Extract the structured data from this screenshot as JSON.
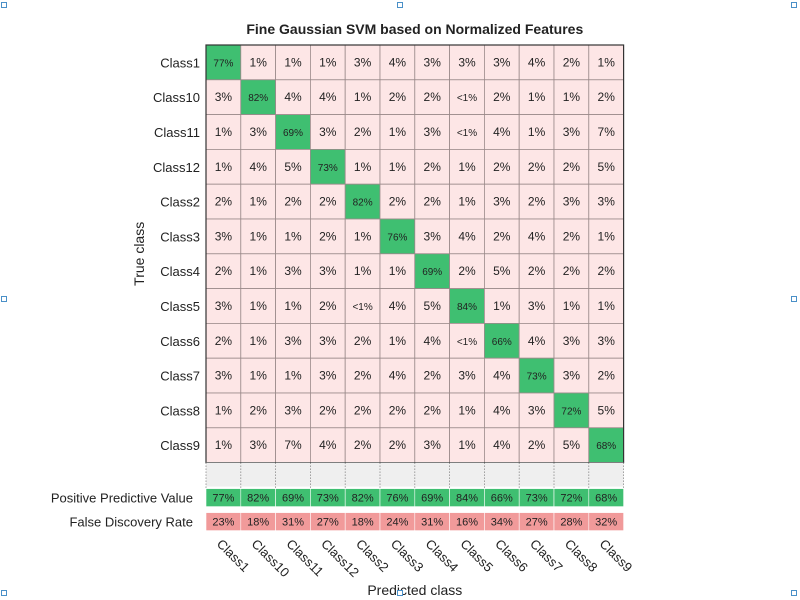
{
  "chart_data": {
    "type": "heatmap",
    "title": "Fine Gaussian SVM based on Normalized Features",
    "xlabel": "Predicted class",
    "ylabel": "True class",
    "classes": [
      "Class1",
      "Class10",
      "Class11",
      "Class12",
      "Class2",
      "Class3",
      "Class4",
      "Class5",
      "Class6",
      "Class7",
      "Class8",
      "Class9"
    ],
    "matrix": [
      [
        "77%",
        "1%",
        "1%",
        "1%",
        "3%",
        "4%",
        "3%",
        "3%",
        "3%",
        "4%",
        "2%",
        "1%"
      ],
      [
        "3%",
        "82%",
        "4%",
        "4%",
        "1%",
        "2%",
        "2%",
        "<1%",
        "2%",
        "1%",
        "1%",
        "2%"
      ],
      [
        "1%",
        "3%",
        "69%",
        "3%",
        "2%",
        "1%",
        "3%",
        "<1%",
        "4%",
        "1%",
        "3%",
        "7%"
      ],
      [
        "1%",
        "4%",
        "5%",
        "73%",
        "1%",
        "1%",
        "2%",
        "1%",
        "2%",
        "2%",
        "2%",
        "5%"
      ],
      [
        "2%",
        "1%",
        "2%",
        "2%",
        "82%",
        "2%",
        "2%",
        "1%",
        "3%",
        "2%",
        "3%",
        "3%"
      ],
      [
        "3%",
        "1%",
        "1%",
        "2%",
        "1%",
        "76%",
        "3%",
        "4%",
        "2%",
        "4%",
        "2%",
        "1%"
      ],
      [
        "2%",
        "1%",
        "3%",
        "3%",
        "1%",
        "1%",
        "69%",
        "2%",
        "5%",
        "2%",
        "2%",
        "2%"
      ],
      [
        "3%",
        "1%",
        "1%",
        "2%",
        "<1%",
        "4%",
        "5%",
        "84%",
        "1%",
        "3%",
        "1%",
        "1%"
      ],
      [
        "2%",
        "1%",
        "3%",
        "3%",
        "2%",
        "1%",
        "4%",
        "<1%",
        "66%",
        "4%",
        "3%",
        "3%"
      ],
      [
        "3%",
        "1%",
        "1%",
        "3%",
        "2%",
        "4%",
        "2%",
        "3%",
        "4%",
        "73%",
        "3%",
        "2%"
      ],
      [
        "1%",
        "2%",
        "3%",
        "2%",
        "2%",
        "2%",
        "2%",
        "1%",
        "4%",
        "3%",
        "72%",
        "5%"
      ],
      [
        "1%",
        "3%",
        "7%",
        "4%",
        "2%",
        "2%",
        "3%",
        "1%",
        "4%",
        "2%",
        "5%",
        "68%"
      ]
    ],
    "summary_rows": [
      {
        "label": "Positive Predictive Value",
        "values": [
          "77%",
          "82%",
          "69%",
          "73%",
          "82%",
          "76%",
          "69%",
          "84%",
          "66%",
          "73%",
          "72%",
          "68%"
        ],
        "color": "#3fbf71"
      },
      {
        "label": "False Discovery Rate",
        "values": [
          "23%",
          "18%",
          "31%",
          "27%",
          "18%",
          "24%",
          "31%",
          "16%",
          "34%",
          "27%",
          "28%",
          "32%"
        ],
        "color": "#f19a9a"
      }
    ],
    "colors": {
      "diagonal": "#3fbf71",
      "off_diagonal": "#fde6e6",
      "grid": "#9a8a8a"
    }
  }
}
